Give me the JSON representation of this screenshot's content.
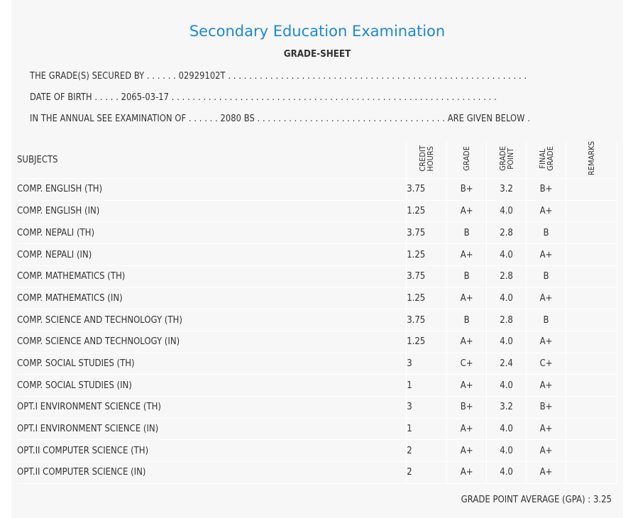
{
  "header": {
    "title": "Secondary Education Examination",
    "subtitle": "GRADE-SHEET"
  },
  "info": {
    "secured_by": "THE GRADE(S) SECURED BY . . . . . . 02929102T . . . . . . . . . . . . . . . . . . . . . . . . . . . . . . . . . . . . . . . . . . . . . . . . . . . . . . . . . .",
    "dob": "DATE OF BIRTH . . . . . 2065-03-17 . . . . . . . . . . . . . . . . . . . . . . . . . . . . . . . . . . . . . . . . . . . . . . . . . . . . . . . . . . . . . .",
    "exam": "IN THE ANNUAL SEE EXAMINATION OF . . . . . . 2080 BS . . . . . . . . . . . . . . . . . . . . . . . . . . . . . . . . . . . . ARE GIVEN BELOW . . ."
  },
  "table": {
    "headers": {
      "subjects": "SUBJECTS",
      "credit_hours": "CREDIT\nHOURS",
      "grade": "GRADE",
      "grade_point": "GRADE\nPOINT",
      "final_grade": "FINAL\nGRADE",
      "remarks": "REMARKS"
    },
    "rows": [
      {
        "subject": "COMP. ENGLISH (TH)",
        "credit": "3.75",
        "grade": "B+",
        "point": "3.2",
        "final": "B+",
        "remarks": ""
      },
      {
        "subject": "COMP. ENGLISH (IN)",
        "credit": "1.25",
        "grade": "A+",
        "point": "4.0",
        "final": "A+",
        "remarks": ""
      },
      {
        "subject": "COMP. NEPALI (TH)",
        "credit": "3.75",
        "grade": "B",
        "point": "2.8",
        "final": "B",
        "remarks": ""
      },
      {
        "subject": "COMP. NEPALI (IN)",
        "credit": "1.25",
        "grade": "A+",
        "point": "4.0",
        "final": "A+",
        "remarks": ""
      },
      {
        "subject": "COMP. MATHEMATICS (TH)",
        "credit": "3.75",
        "grade": "B",
        "point": "2.8",
        "final": "B",
        "remarks": ""
      },
      {
        "subject": "COMP. MATHEMATICS (IN)",
        "credit": "1.25",
        "grade": "A+",
        "point": "4.0",
        "final": "A+",
        "remarks": ""
      },
      {
        "subject": "COMP. SCIENCE AND TECHNOLOGY (TH)",
        "credit": "3.75",
        "grade": "B",
        "point": "2.8",
        "final": "B",
        "remarks": ""
      },
      {
        "subject": "COMP. SCIENCE AND TECHNOLOGY (IN)",
        "credit": "1.25",
        "grade": "A+",
        "point": "4.0",
        "final": "A+",
        "remarks": ""
      },
      {
        "subject": "COMP. SOCIAL STUDIES (TH)",
        "credit": "3",
        "grade": "C+",
        "point": "2.4",
        "final": "C+",
        "remarks": ""
      },
      {
        "subject": "COMP. SOCIAL STUDIES (IN)",
        "credit": "1",
        "grade": "A+",
        "point": "4.0",
        "final": "A+",
        "remarks": ""
      },
      {
        "subject": "OPT.I ENVIRONMENT SCIENCE (TH)",
        "credit": "3",
        "grade": "B+",
        "point": "3.2",
        "final": "B+",
        "remarks": ""
      },
      {
        "subject": "OPT.I ENVIRONMENT SCIENCE (IN)",
        "credit": "1",
        "grade": "A+",
        "point": "4.0",
        "final": "A+",
        "remarks": ""
      },
      {
        "subject": "OPT.II COMPUTER SCIENCE (TH)",
        "credit": "2",
        "grade": "A+",
        "point": "4.0",
        "final": "A+",
        "remarks": ""
      },
      {
        "subject": "OPT.II COMPUTER SCIENCE (IN)",
        "credit": "2",
        "grade": "A+",
        "point": "4.0",
        "final": "A+",
        "remarks": ""
      }
    ]
  },
  "footer": {
    "gpa": "GRADE POINT AVERAGE (GPA) : 3.25"
  },
  "colors": {
    "title": "#1e88d6",
    "sheet_background": "#f7f7f7",
    "text": "#333333"
  }
}
